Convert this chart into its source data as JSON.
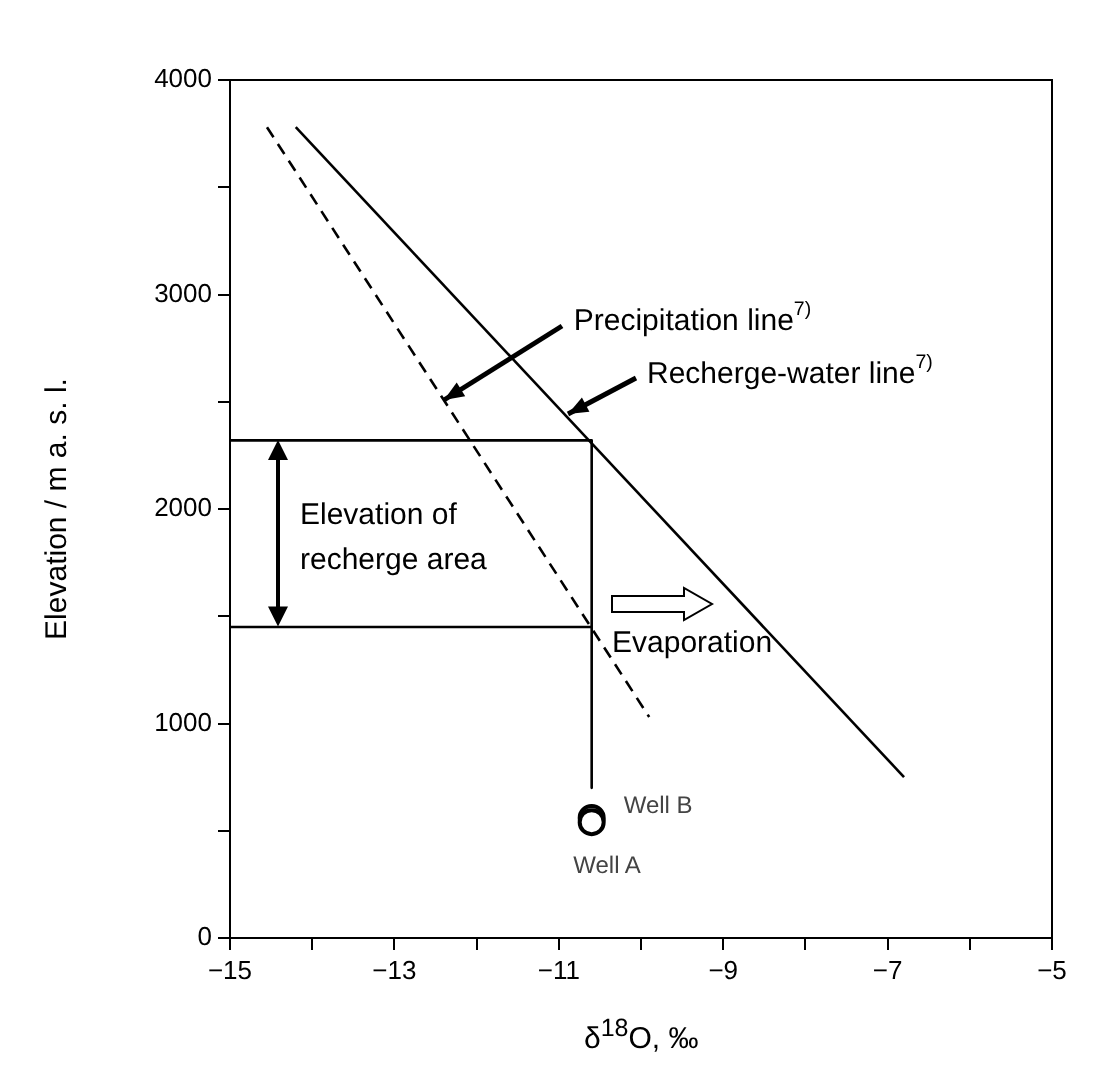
{
  "chart_data": {
    "type": "line",
    "xlabel": "δ$^{18}$O, ‰",
    "ylabel": "Elevation / m a. s. l.",
    "xlim": [
      -15,
      -5
    ],
    "xticks": [
      -15,
      {
        "value": -14,
        "label": null
      },
      -13,
      {
        "value": -12,
        "label": null
      },
      -11,
      {
        "value": -10,
        "label": null
      },
      -9,
      {
        "value": -8,
        "label": null
      },
      -7,
      {
        "value": -6,
        "label": null
      },
      -5
    ],
    "ylim": [
      0,
      4000
    ],
    "yticks": [
      0,
      {
        "value": 500,
        "label": null
      },
      1000,
      {
        "value": 1500,
        "label": null
      },
      2000,
      {
        "value": 2500,
        "label": null
      },
      3000,
      {
        "value": 3500,
        "label": null
      },
      4000
    ],
    "grid": false,
    "legend": false,
    "marker": "none",
    "series": [
      {
        "line_style": "solid",
        "color": "#000000",
        "x": [
          -14.2,
          -6.8
        ],
        "values": [
          3780,
          750
        ]
      },
      {
        "line_style": "dashed",
        "color": "#000000",
        "x": [
          -14.55,
          -9.9
        ],
        "values": [
          3780,
          1030
        ]
      },
      {
        "line_style": "solid",
        "color": "#000000",
        "x": [
          -15,
          -10.6,
          -10.6
        ],
        "values": [
          2320,
          2320,
          700
        ]
      },
      {
        "line_style": "solid",
        "color": "#000000",
        "x": [
          -15,
          -10.6
        ],
        "values": [
          1450,
          1450
        ]
      },
      {
        "type": "scatter",
        "marker": "circle",
        "color": "#000000",
        "x": [
          -10.6,
          -10.6
        ],
        "values": [
          560,
          540
        ]
      }
    ],
    "annotations": [
      {
        "text": "Precipitation line$^{7)}$",
        "x": -12.4,
        "y": 2510
      },
      {
        "text": "Recherge-water line$^{7)}$",
        "x": -10.9,
        "y": 2440
      },
      "Elevation of recherge area",
      "Evaporation",
      {
        "text": "Well B",
        "x": -10.6,
        "y": 560
      },
      {
        "text": "Well A",
        "x": -10.6,
        "y": 540
      }
    ]
  }
}
